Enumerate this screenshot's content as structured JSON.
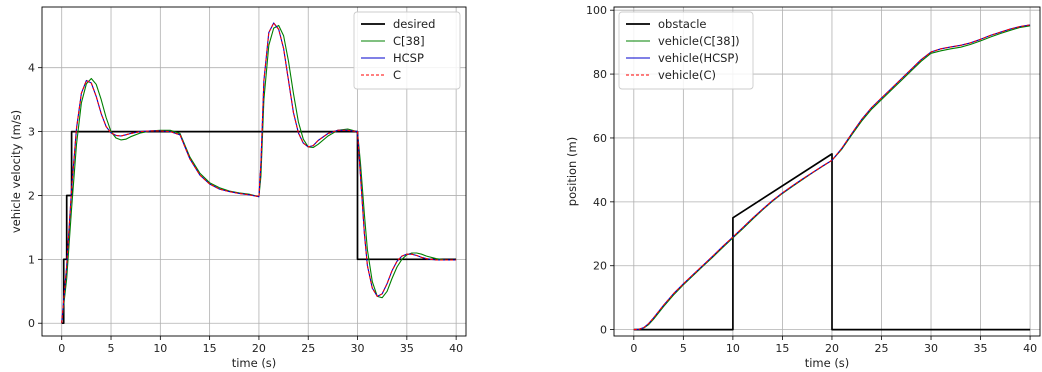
{
  "chart_data": [
    {
      "type": "line",
      "xlabel": "time (s)",
      "ylabel": "vehicle velocity (m/s)",
      "xlim": [
        -2,
        41
      ],
      "ylim": [
        -0.2,
        4.95
      ],
      "xticks": [
        0,
        5,
        10,
        15,
        20,
        25,
        30,
        35,
        40
      ],
      "yticks": [
        0,
        1,
        2,
        3,
        4
      ],
      "grid": true,
      "legend_position": "top-right",
      "series": [
        {
          "name": "desired",
          "color": "#000000",
          "style": "solid",
          "step": true,
          "x": [
            0,
            0.2,
            0.2,
            0.5,
            0.5,
            1.0,
            1.0,
            30.0,
            30.0,
            40.0
          ],
          "y": [
            0,
            0,
            1,
            1,
            2,
            2,
            3,
            3,
            1,
            1
          ]
        },
        {
          "name": "C[38]",
          "color": "#008000",
          "style": "solid",
          "x": [
            0,
            0.5,
            1,
            1.5,
            2,
            2.5,
            3,
            3.5,
            4,
            4.5,
            5,
            5.5,
            6,
            6.5,
            7,
            8,
            9,
            10,
            11,
            12,
            13,
            14,
            15,
            16,
            17,
            18,
            19,
            20,
            20.2,
            20.5,
            21,
            21.5,
            22,
            22.5,
            23,
            23.5,
            24,
            24.5,
            25,
            25.5,
            26,
            27,
            28,
            29,
            30,
            30.3,
            30.7,
            31,
            31.5,
            32,
            32.5,
            33,
            33.5,
            34,
            34.5,
            35,
            35.5,
            36,
            36.5,
            37,
            38,
            39,
            40
          ],
          "y": [
            0,
            0.7,
            1.8,
            2.8,
            3.45,
            3.75,
            3.83,
            3.74,
            3.5,
            3.22,
            3.0,
            2.9,
            2.87,
            2.88,
            2.92,
            2.98,
            3.01,
            3.02,
            3.02,
            2.97,
            2.6,
            2.35,
            2.2,
            2.12,
            2.07,
            2.04,
            2.02,
            1.98,
            2.3,
            3.5,
            4.35,
            4.62,
            4.66,
            4.5,
            4.1,
            3.6,
            3.15,
            2.88,
            2.76,
            2.75,
            2.8,
            2.93,
            3.02,
            3.04,
            3.0,
            2.5,
            1.7,
            1.15,
            0.65,
            0.42,
            0.4,
            0.5,
            0.7,
            0.88,
            1.0,
            1.07,
            1.1,
            1.1,
            1.08,
            1.05,
            1.01,
            0.99,
            0.99
          ]
        },
        {
          "name": "HCSP",
          "color": "#0000cc",
          "style": "solid",
          "x": [
            0,
            0.5,
            1,
            1.5,
            2,
            2.5,
            3,
            3.5,
            4,
            4.5,
            5,
            5.5,
            6,
            6.5,
            7,
            8,
            9,
            10,
            11,
            12,
            13,
            14,
            15,
            16,
            17,
            18,
            19,
            20,
            20.2,
            20.5,
            21,
            21.5,
            22,
            22.5,
            23,
            23.5,
            24,
            24.5,
            25,
            25.5,
            26,
            27,
            28,
            29,
            30,
            30.3,
            30.7,
            31,
            31.5,
            32,
            32.5,
            33,
            33.5,
            34,
            34.5,
            35,
            35.5,
            36,
            36.5,
            37,
            38,
            39,
            40
          ],
          "y": [
            0,
            0.9,
            2.1,
            3.05,
            3.6,
            3.8,
            3.76,
            3.55,
            3.28,
            3.08,
            2.98,
            2.94,
            2.93,
            2.95,
            2.97,
            3.0,
            3.01,
            3.01,
            3.0,
            2.95,
            2.57,
            2.32,
            2.18,
            2.1,
            2.06,
            2.03,
            2.01,
            1.98,
            2.5,
            3.8,
            4.55,
            4.7,
            4.6,
            4.3,
            3.8,
            3.3,
            2.98,
            2.82,
            2.76,
            2.78,
            2.86,
            2.97,
            3.02,
            3.02,
            3.0,
            2.3,
            1.4,
            0.9,
            0.55,
            0.42,
            0.46,
            0.62,
            0.82,
            0.97,
            1.05,
            1.08,
            1.08,
            1.06,
            1.03,
            1.01,
            0.99,
            0.99,
            0.99
          ]
        },
        {
          "name": "C",
          "color": "#ff0000",
          "style": "dashed",
          "x": [
            0,
            0.5,
            1,
            1.5,
            2,
            2.5,
            3,
            3.5,
            4,
            4.5,
            5,
            5.5,
            6,
            6.5,
            7,
            8,
            9,
            10,
            11,
            12,
            13,
            14,
            15,
            16,
            17,
            18,
            19,
            20,
            20.2,
            20.5,
            21,
            21.5,
            22,
            22.5,
            23,
            23.5,
            24,
            24.5,
            25,
            25.5,
            26,
            27,
            28,
            29,
            30,
            30.3,
            30.7,
            31,
            31.5,
            32,
            32.5,
            33,
            33.5,
            34,
            34.5,
            35,
            35.5,
            36,
            36.5,
            37,
            38,
            39,
            40
          ],
          "y": [
            0,
            0.9,
            2.1,
            3.05,
            3.6,
            3.8,
            3.76,
            3.55,
            3.28,
            3.08,
            2.98,
            2.94,
            2.93,
            2.95,
            2.97,
            3.0,
            3.01,
            3.01,
            3.0,
            2.95,
            2.57,
            2.32,
            2.18,
            2.1,
            2.06,
            2.03,
            2.01,
            1.98,
            2.5,
            3.8,
            4.55,
            4.7,
            4.6,
            4.3,
            3.8,
            3.3,
            2.98,
            2.82,
            2.76,
            2.78,
            2.86,
            2.97,
            3.02,
            3.02,
            3.0,
            2.3,
            1.4,
            0.9,
            0.55,
            0.42,
            0.46,
            0.62,
            0.82,
            0.97,
            1.05,
            1.08,
            1.08,
            1.06,
            1.03,
            1.01,
            0.99,
            0.99,
            0.99
          ]
        }
      ]
    },
    {
      "type": "line",
      "xlabel": "time (s)",
      "ylabel": "position (m)",
      "xlim": [
        -2,
        41
      ],
      "ylim": [
        -2,
        101
      ],
      "xticks": [
        0,
        5,
        10,
        15,
        20,
        25,
        30,
        35,
        40
      ],
      "yticks": [
        0,
        20,
        40,
        60,
        80,
        100
      ],
      "grid": true,
      "legend_position": "top-left",
      "series": [
        {
          "name": "obstacle",
          "color": "#000000",
          "style": "solid",
          "x": [
            0,
            10,
            10,
            20,
            20,
            40
          ],
          "y": [
            0,
            0,
            35,
            55,
            0,
            0
          ]
        },
        {
          "name": "vehicle(C[38])",
          "color": "#008000",
          "style": "solid",
          "x": [
            0,
            0.5,
            1,
            1.5,
            2,
            3,
            4,
            5,
            6,
            7,
            8,
            9,
            10,
            11,
            12,
            13,
            14,
            15,
            16,
            17,
            18,
            19,
            20,
            21,
            22,
            23,
            24,
            25,
            26,
            27,
            28,
            29,
            30,
            31,
            32,
            33,
            34,
            35,
            36,
            37,
            38,
            39,
            40
          ],
          "y": [
            0,
            0.1,
            0.5,
            1.6,
            3.3,
            7.2,
            10.8,
            14.0,
            17.0,
            19.9,
            22.8,
            25.8,
            28.7,
            31.6,
            34.6,
            37.5,
            40.2,
            42.6,
            44.8,
            46.9,
            49.0,
            51.0,
            53.0,
            56.5,
            61.0,
            65.3,
            69.0,
            72.0,
            75.0,
            78.0,
            81.0,
            84.0,
            86.5,
            87.3,
            87.9,
            88.4,
            89.3,
            90.4,
            91.6,
            92.7,
            93.7,
            94.6,
            95.1
          ]
        },
        {
          "name": "vehicle(HCSP)",
          "color": "#0000cc",
          "style": "solid",
          "x": [
            0,
            0.5,
            1,
            1.5,
            2,
            3,
            4,
            5,
            6,
            7,
            8,
            9,
            10,
            11,
            12,
            13,
            14,
            15,
            16,
            17,
            18,
            19,
            20,
            21,
            22,
            23,
            24,
            25,
            26,
            27,
            28,
            29,
            30,
            31,
            32,
            33,
            34,
            35,
            36,
            37,
            38,
            39,
            40
          ],
          "y": [
            0,
            0.1,
            0.6,
            1.9,
            3.7,
            7.6,
            11.2,
            14.3,
            17.3,
            20.2,
            23.1,
            26.1,
            29.0,
            31.9,
            34.9,
            37.7,
            40.4,
            42.8,
            45.0,
            47.1,
            49.1,
            51.1,
            53.0,
            56.8,
            61.4,
            65.8,
            69.5,
            72.5,
            75.5,
            78.5,
            81.5,
            84.5,
            86.9,
            87.9,
            88.5,
            89.0,
            89.8,
            90.9,
            92.1,
            93.1,
            94.1,
            94.9,
            95.4
          ]
        },
        {
          "name": "vehicle(C)",
          "color": "#ff0000",
          "style": "dashed",
          "x": [
            0,
            0.5,
            1,
            1.5,
            2,
            3,
            4,
            5,
            6,
            7,
            8,
            9,
            10,
            11,
            12,
            13,
            14,
            15,
            16,
            17,
            18,
            19,
            20,
            21,
            22,
            23,
            24,
            25,
            26,
            27,
            28,
            29,
            30,
            31,
            32,
            33,
            34,
            35,
            36,
            37,
            38,
            39,
            40
          ],
          "y": [
            0,
            0.1,
            0.6,
            1.9,
            3.7,
            7.6,
            11.2,
            14.3,
            17.3,
            20.2,
            23.1,
            26.1,
            29.0,
            31.9,
            34.9,
            37.7,
            40.4,
            42.8,
            45.0,
            47.1,
            49.1,
            51.1,
            53.0,
            56.8,
            61.4,
            65.8,
            69.5,
            72.5,
            75.5,
            78.5,
            81.5,
            84.5,
            86.9,
            87.9,
            88.5,
            89.0,
            89.8,
            90.9,
            92.1,
            93.1,
            94.1,
            94.9,
            95.4
          ]
        }
      ]
    }
  ]
}
